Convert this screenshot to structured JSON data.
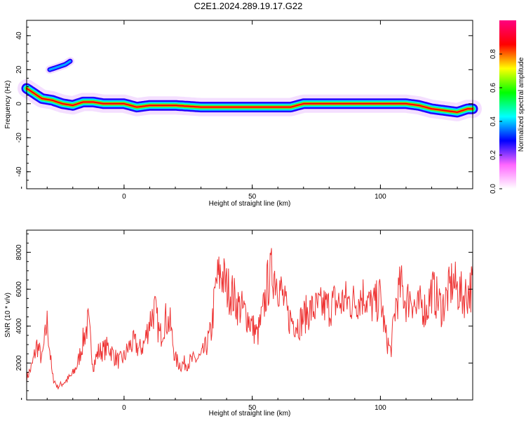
{
  "chart_data": [
    {
      "type": "heatmap",
      "title": "C2E1.2024.289.19.17.G22",
      "xlabel": "Height of straight line (km)",
      "ylabel": "Frequency (Hz)",
      "xlim": [
        -38,
        136
      ],
      "ylim": [
        -50,
        49
      ],
      "xticks": [
        "0",
        "50",
        "100"
      ],
      "yticks": [
        "-40",
        "-20",
        "0",
        "20",
        "40"
      ],
      "colorbar": {
        "label": "Normalized spectral amplitude",
        "range": [
          0.0,
          1.0
        ],
        "ticks": [
          "0.0",
          "0.2",
          "0.4",
          "0.6",
          "0.8"
        ],
        "colormap": [
          "#ffffff",
          "#ff66ff",
          "#0000ff",
          "#00ffff",
          "#00ff00",
          "#ffff00",
          "#ff0000",
          "#ff0080"
        ]
      },
      "ridge": {
        "x": [
          -38,
          -35,
          -32,
          -28,
          -24,
          -20,
          -16,
          -12,
          -8,
          -4,
          0,
          5,
          10,
          20,
          30,
          40,
          50,
          60,
          65,
          70,
          80,
          90,
          100,
          105,
          110,
          115,
          120,
          125,
          130,
          134,
          136
        ],
        "y": [
          9,
          6,
          3,
          2,
          0,
          -1,
          1,
          1,
          0,
          0,
          0,
          -2,
          -1,
          -1,
          -2,
          -2,
          -2,
          -2,
          -2,
          0,
          0,
          0,
          0,
          0,
          0,
          -1,
          -3,
          -4,
          -5,
          -3,
          -3
        ]
      },
      "branch": {
        "x": [
          -29,
          -27,
          -25,
          -23,
          -21
        ],
        "y": [
          20,
          21,
          22,
          23,
          25
        ]
      }
    },
    {
      "type": "line",
      "xlabel": "Height of straight line (km)",
      "ylabel": "SNR (10 * v/v)",
      "xlim": [
        -38,
        136
      ],
      "ylim": [
        0,
        9200
      ],
      "xticks": [
        "0",
        "50",
        "100"
      ],
      "yticks": [
        "2000",
        "4000",
        "6000",
        "8000"
      ],
      "color": "#ee3333",
      "x": [
        -38,
        -36,
        -34,
        -32,
        -30,
        -28,
        -26,
        -24,
        -22,
        -20,
        -18,
        -16,
        -14,
        -12,
        -10,
        -8,
        -6,
        -4,
        -2,
        0,
        2,
        4,
        6,
        8,
        10,
        12,
        14,
        16,
        18,
        20,
        22,
        24,
        26,
        28,
        30,
        32,
        34,
        36,
        38,
        40,
        42,
        44,
        46,
        48,
        50,
        52,
        54,
        56,
        58,
        60,
        62,
        64,
        66,
        68,
        70,
        72,
        74,
        76,
        78,
        80,
        82,
        84,
        86,
        88,
        90,
        92,
        94,
        96,
        98,
        100,
        102,
        104,
        106,
        108,
        110,
        112,
        114,
        116,
        118,
        120,
        122,
        124,
        126,
        128,
        130,
        132,
        134,
        136
      ],
      "y": [
        1200,
        1800,
        3000,
        2200,
        4200,
        1300,
        700,
        900,
        1100,
        1400,
        2000,
        3200,
        4200,
        1900,
        2600,
        2700,
        2900,
        2400,
        2100,
        2300,
        2900,
        3100,
        2700,
        3100,
        4300,
        4900,
        3400,
        4400,
        4100,
        2200,
        1900,
        2000,
        2100,
        2200,
        2300,
        2900,
        3700,
        6400,
        6900,
        6100,
        5800,
        5200,
        4900,
        4600,
        4000,
        3500,
        4600,
        6300,
        7000,
        6500,
        5500,
        4500,
        4300,
        4100,
        4500,
        4800,
        4900,
        5000,
        5100,
        5000,
        5300,
        5200,
        5400,
        5300,
        5300,
        5600,
        5700,
        5100,
        5200,
        5600,
        3500,
        2600,
        5200,
        6200,
        5300,
        5700,
        4800,
        5200,
        4800,
        6000,
        5500,
        5000,
        5600,
        6400,
        6000,
        5600,
        5800,
        6200
      ]
    }
  ]
}
